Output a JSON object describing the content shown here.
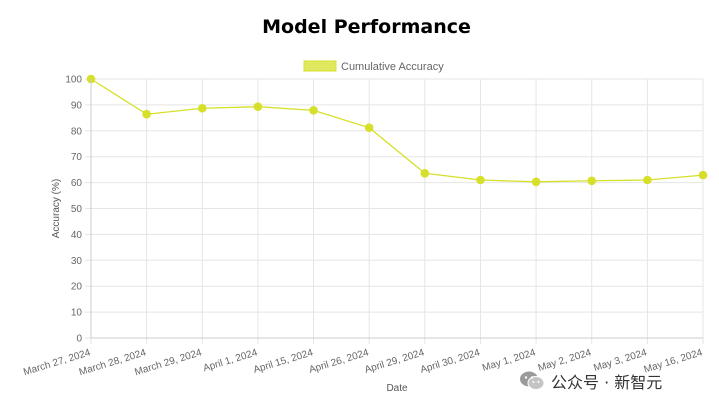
{
  "chart_data": {
    "type": "line",
    "title": "Model Performance",
    "xlabel": "Date",
    "ylabel": "Accuracy (%)",
    "ylim": [
      0,
      100
    ],
    "y_ticks": [
      0,
      10,
      20,
      30,
      40,
      50,
      60,
      70,
      80,
      90,
      100
    ],
    "grid": true,
    "legend_position": "top",
    "categories": [
      "March 27, 2024",
      "March 28, 2024",
      "March 29, 2024",
      "April 1, 2024",
      "April 15, 2024",
      "April 26, 2024",
      "April 29, 2024",
      "April 30, 2024",
      "May 1, 2024",
      "May 2, 2024",
      "May 3, 2024",
      "May 16, 2024"
    ],
    "series": [
      {
        "name": "Cumulative Accuracy",
        "color": "#d6e02a",
        "values": [
          100,
          86.4,
          88.7,
          89.3,
          87.9,
          81.2,
          63.6,
          61.0,
          60.3,
          60.7,
          61.0,
          62.9
        ]
      }
    ]
  },
  "watermark": {
    "text": "公众号 · 新智元",
    "icon": "wechat-icon"
  }
}
